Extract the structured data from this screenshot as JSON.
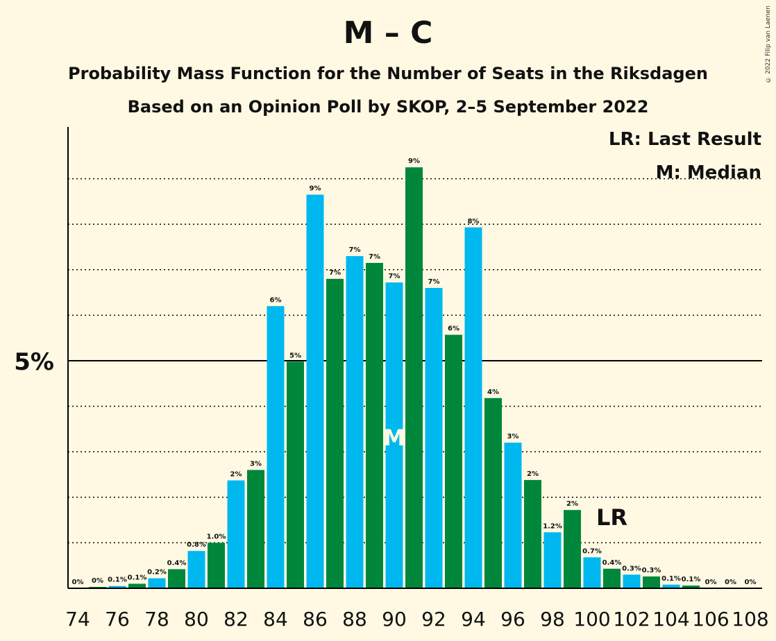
{
  "header": {
    "title": "M – C",
    "subtitle1": "Probability Mass Function for the Number of Seats in the Riksdagen",
    "subtitle2": "Based on an Opinion Poll by SKOP, 2–5 September 2022",
    "copyright": "© 2022 Filip van Laenen"
  },
  "legend": {
    "last_result": "LR: Last Result",
    "median": "M: Median"
  },
  "markers": {
    "median_label": "M",
    "median_seat": 90,
    "last_result_label": "LR",
    "last_result_seat": 101
  },
  "colors": {
    "blue": "#00B8F0",
    "green": "#00873C",
    "background": "#FFF9E3"
  },
  "chart_data": {
    "type": "bar",
    "title": "M – C",
    "ytick_label": "5%",
    "ytick_value": 5,
    "ylim": [
      0,
      10
    ],
    "grid": "dotted horizontal lines every 1%",
    "x_tick_labels": [
      "74",
      "76",
      "78",
      "80",
      "82",
      "84",
      "86",
      "88",
      "90",
      "92",
      "94",
      "96",
      "98",
      "100",
      "102",
      "104",
      "106",
      "108"
    ],
    "seats": [
      74,
      75,
      76,
      77,
      78,
      79,
      80,
      81,
      82,
      83,
      84,
      85,
      86,
      87,
      88,
      89,
      90,
      91,
      92,
      93,
      94,
      95,
      96,
      97,
      98,
      99,
      100,
      101,
      102,
      103,
      104,
      105,
      106,
      107,
      108
    ],
    "values": [
      0.0,
      0.03,
      0.05,
      0.1,
      0.22,
      0.42,
      0.82,
      1.0,
      2.37,
      2.6,
      6.2,
      4.98,
      8.65,
      6.8,
      7.3,
      7.15,
      6.72,
      9.25,
      6.6,
      5.57,
      7.93,
      4.18,
      3.2,
      2.38,
      1.23,
      1.72,
      0.68,
      0.43,
      0.3,
      0.26,
      0.08,
      0.06,
      0.0,
      0.0,
      0.0
    ],
    "labels": [
      "0%",
      "0%",
      "0.1%",
      "0.1%",
      "0.2%",
      "0.4%",
      "0.8%",
      "1.0%",
      "2%",
      "3%",
      "6%",
      "5%",
      "9%",
      "7%",
      "7%",
      "7%",
      "7%",
      "9%",
      "7%",
      "6%",
      "8%",
      "4%",
      "3%",
      "2%",
      "1.2%",
      "2%",
      "0.7%",
      "0.4%",
      "0.3%",
      "0.3%",
      "0.1%",
      "0.1%",
      "0%",
      "0%",
      "0%"
    ]
  }
}
